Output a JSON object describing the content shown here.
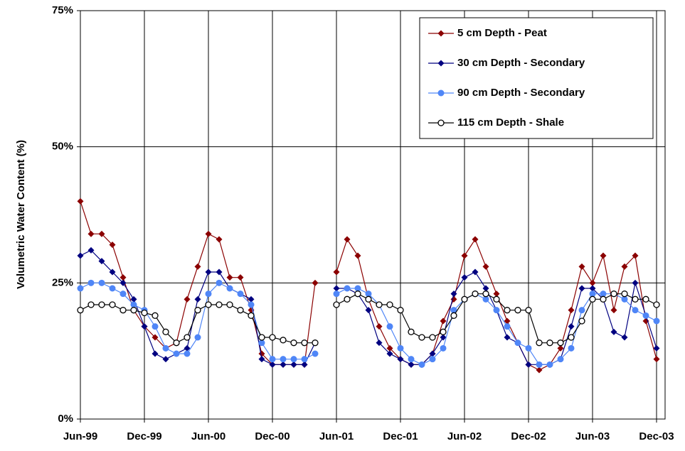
{
  "chart_data": {
    "type": "line",
    "y_label": "Volumetric Water Content (%)",
    "categories": [
      "Jun-99",
      null,
      null,
      null,
      null,
      null,
      "Dec-99",
      null,
      null,
      null,
      null,
      null,
      "Jun-00",
      null,
      null,
      null,
      null,
      null,
      "Dec-00",
      null,
      null,
      null,
      null,
      null,
      "Jun-01",
      null,
      null,
      null,
      null,
      null,
      "Dec-01",
      null,
      null,
      null,
      null,
      null,
      "Jun-02",
      null,
      null,
      null,
      null,
      null,
      "Dec-02",
      null,
      null,
      null,
      null,
      null,
      "Jun-03",
      null,
      null,
      null,
      null,
      null,
      "Dec-03"
    ],
    "series": [
      {
        "name": "5 cm Depth - Peat",
        "color": "#8b0000",
        "marker": "diamond",
        "values": [
          40,
          34,
          34,
          32,
          26,
          20,
          17,
          15,
          13,
          14,
          22,
          28,
          34,
          33,
          26,
          26,
          20,
          12,
          10,
          10,
          10,
          10,
          25,
          null,
          27,
          33,
          30,
          22,
          17,
          13,
          11,
          10,
          10,
          12,
          18,
          22,
          30,
          33,
          28,
          23,
          18,
          14,
          10,
          9,
          10,
          13,
          20,
          28,
          25,
          30,
          20,
          28,
          30,
          18,
          11
        ]
      },
      {
        "name": "30 cm Depth - Secondary",
        "color": "#000080",
        "marker": "diamond",
        "values": [
          30,
          31,
          29,
          27,
          25,
          22,
          17,
          12,
          11,
          12,
          13,
          22,
          27,
          27,
          24,
          23,
          22,
          11,
          10,
          10,
          10,
          10,
          14,
          null,
          24,
          24,
          23,
          20,
          14,
          12,
          11,
          10,
          10,
          12,
          15,
          23,
          26,
          27,
          24,
          20,
          15,
          14,
          10,
          10,
          10,
          11,
          17,
          24,
          24,
          22,
          16,
          15,
          25,
          19,
          13
        ]
      },
      {
        "name": "90 cm Depth - Secondary",
        "color": "#4f86f7",
        "marker": "circle",
        "values": [
          24,
          25,
          25,
          24,
          23,
          21,
          20,
          17,
          13,
          12,
          12,
          15,
          23,
          25,
          24,
          23,
          21,
          14,
          11,
          11,
          11,
          11,
          12,
          null,
          23,
          24,
          24,
          23,
          21,
          17,
          13,
          11,
          10,
          11,
          13,
          20,
          22,
          23,
          22,
          20,
          17,
          14,
          13,
          10,
          10,
          11,
          13,
          20,
          23,
          23,
          23,
          22,
          20,
          19,
          18
        ]
      },
      {
        "name": "115 cm Depth - Shale",
        "color": "#000000",
        "marker": "open-circle",
        "values": [
          20,
          21,
          21,
          21,
          20,
          20,
          19.5,
          19,
          16,
          14,
          15,
          20,
          21,
          21,
          21,
          20,
          19,
          15,
          15,
          14.5,
          14,
          14,
          14,
          null,
          21,
          22,
          23,
          22,
          21,
          21,
          20,
          16,
          15,
          15,
          16,
          19,
          22,
          23,
          23,
          22,
          20,
          20,
          20,
          14,
          14,
          14,
          15,
          18,
          22,
          22,
          23,
          23,
          22,
          22,
          21
        ]
      }
    ],
    "ylim": [
      0,
      75
    ],
    "yticks": [
      {
        "value": 0,
        "label": "0%"
      },
      {
        "value": 25,
        "label": "25%"
      },
      {
        "value": 50,
        "label": "50%"
      },
      {
        "value": 75,
        "label": "75%"
      }
    ],
    "grid": true,
    "legend": "upper right"
  }
}
